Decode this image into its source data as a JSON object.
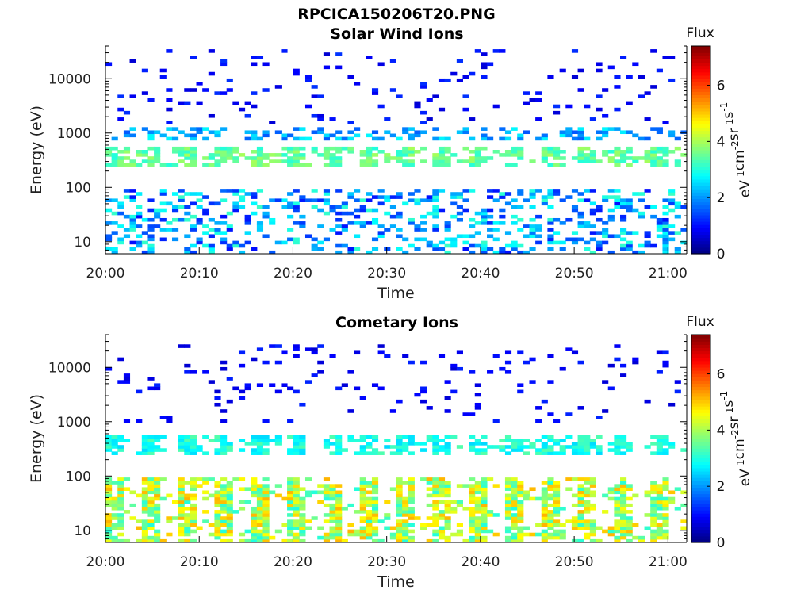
{
  "figure_title": "RPCICA150206T20.PNG",
  "chart_data": [
    {
      "type": "heatmap",
      "title": "Solar Wind Ions",
      "xlabel": "Time",
      "ylabel": "Energy (eV)",
      "x_ticks": [
        "20:00",
        "20:10",
        "20:20",
        "20:30",
        "20:40",
        "20:50",
        "21:00"
      ],
      "y_ticks": [
        "10",
        "100",
        "1000",
        "10000"
      ],
      "y_scale": "log",
      "xlim": [
        "20:00",
        "21:02"
      ],
      "ylim": [
        6,
        40000
      ],
      "colorbar": {
        "label": "Flux",
        "unit_parts": [
          "eV",
          "-1",
          "cm",
          "-2",
          "sr",
          "-1",
          "s",
          "-1"
        ],
        "ticks": [
          "0",
          "2",
          "4",
          "6"
        ],
        "range": [
          0,
          7.4
        ],
        "colormap": "jet"
      },
      "features": [
        {
          "name": "solar-wind-beam",
          "energy_eV": [
            250,
            600
          ],
          "flux": [
            3.0,
            4.0
          ]
        },
        {
          "name": "beam-harmonics",
          "energy_eV": [
            700,
            1300
          ],
          "flux": [
            1.5,
            2.8
          ]
        },
        {
          "name": "low-energy-ions",
          "energy_eV": [
            6,
            100
          ],
          "flux": [
            1.0,
            3.2
          ]
        },
        {
          "name": "sparse-high-energy-counts",
          "energy_eV": [
            1500,
            35000
          ],
          "flux": [
            0.6,
            1.3
          ]
        }
      ]
    },
    {
      "type": "heatmap",
      "title": "Cometary Ions",
      "xlabel": "Time",
      "ylabel": "Energy (eV)",
      "x_ticks": [
        "20:00",
        "20:10",
        "20:20",
        "20:30",
        "20:40",
        "20:50",
        "21:00"
      ],
      "y_ticks": [
        "10",
        "100",
        "1000",
        "10000"
      ],
      "y_scale": "log",
      "xlim": [
        "20:00",
        "21:02"
      ],
      "ylim": [
        6,
        40000
      ],
      "colorbar": {
        "label": "Flux",
        "unit_parts": [
          "eV",
          "-1",
          "cm",
          "-2",
          "sr",
          "-1",
          "s",
          "-1"
        ],
        "ticks": [
          "0",
          "2",
          "4",
          "6"
        ],
        "range": [
          0,
          7.4
        ],
        "colormap": "jet"
      },
      "features": [
        {
          "name": "solar-wind-beam",
          "energy_eV": [
            250,
            550
          ],
          "flux": [
            2.5,
            3.4
          ]
        },
        {
          "name": "cometary-ion-bursts",
          "energy_eV": [
            6,
            90
          ],
          "flux": [
            3.0,
            5.2
          ]
        },
        {
          "name": "sparse-high-energy-counts",
          "energy_eV": [
            1000,
            25000
          ],
          "flux": [
            0.6,
            1.2
          ]
        }
      ]
    }
  ]
}
